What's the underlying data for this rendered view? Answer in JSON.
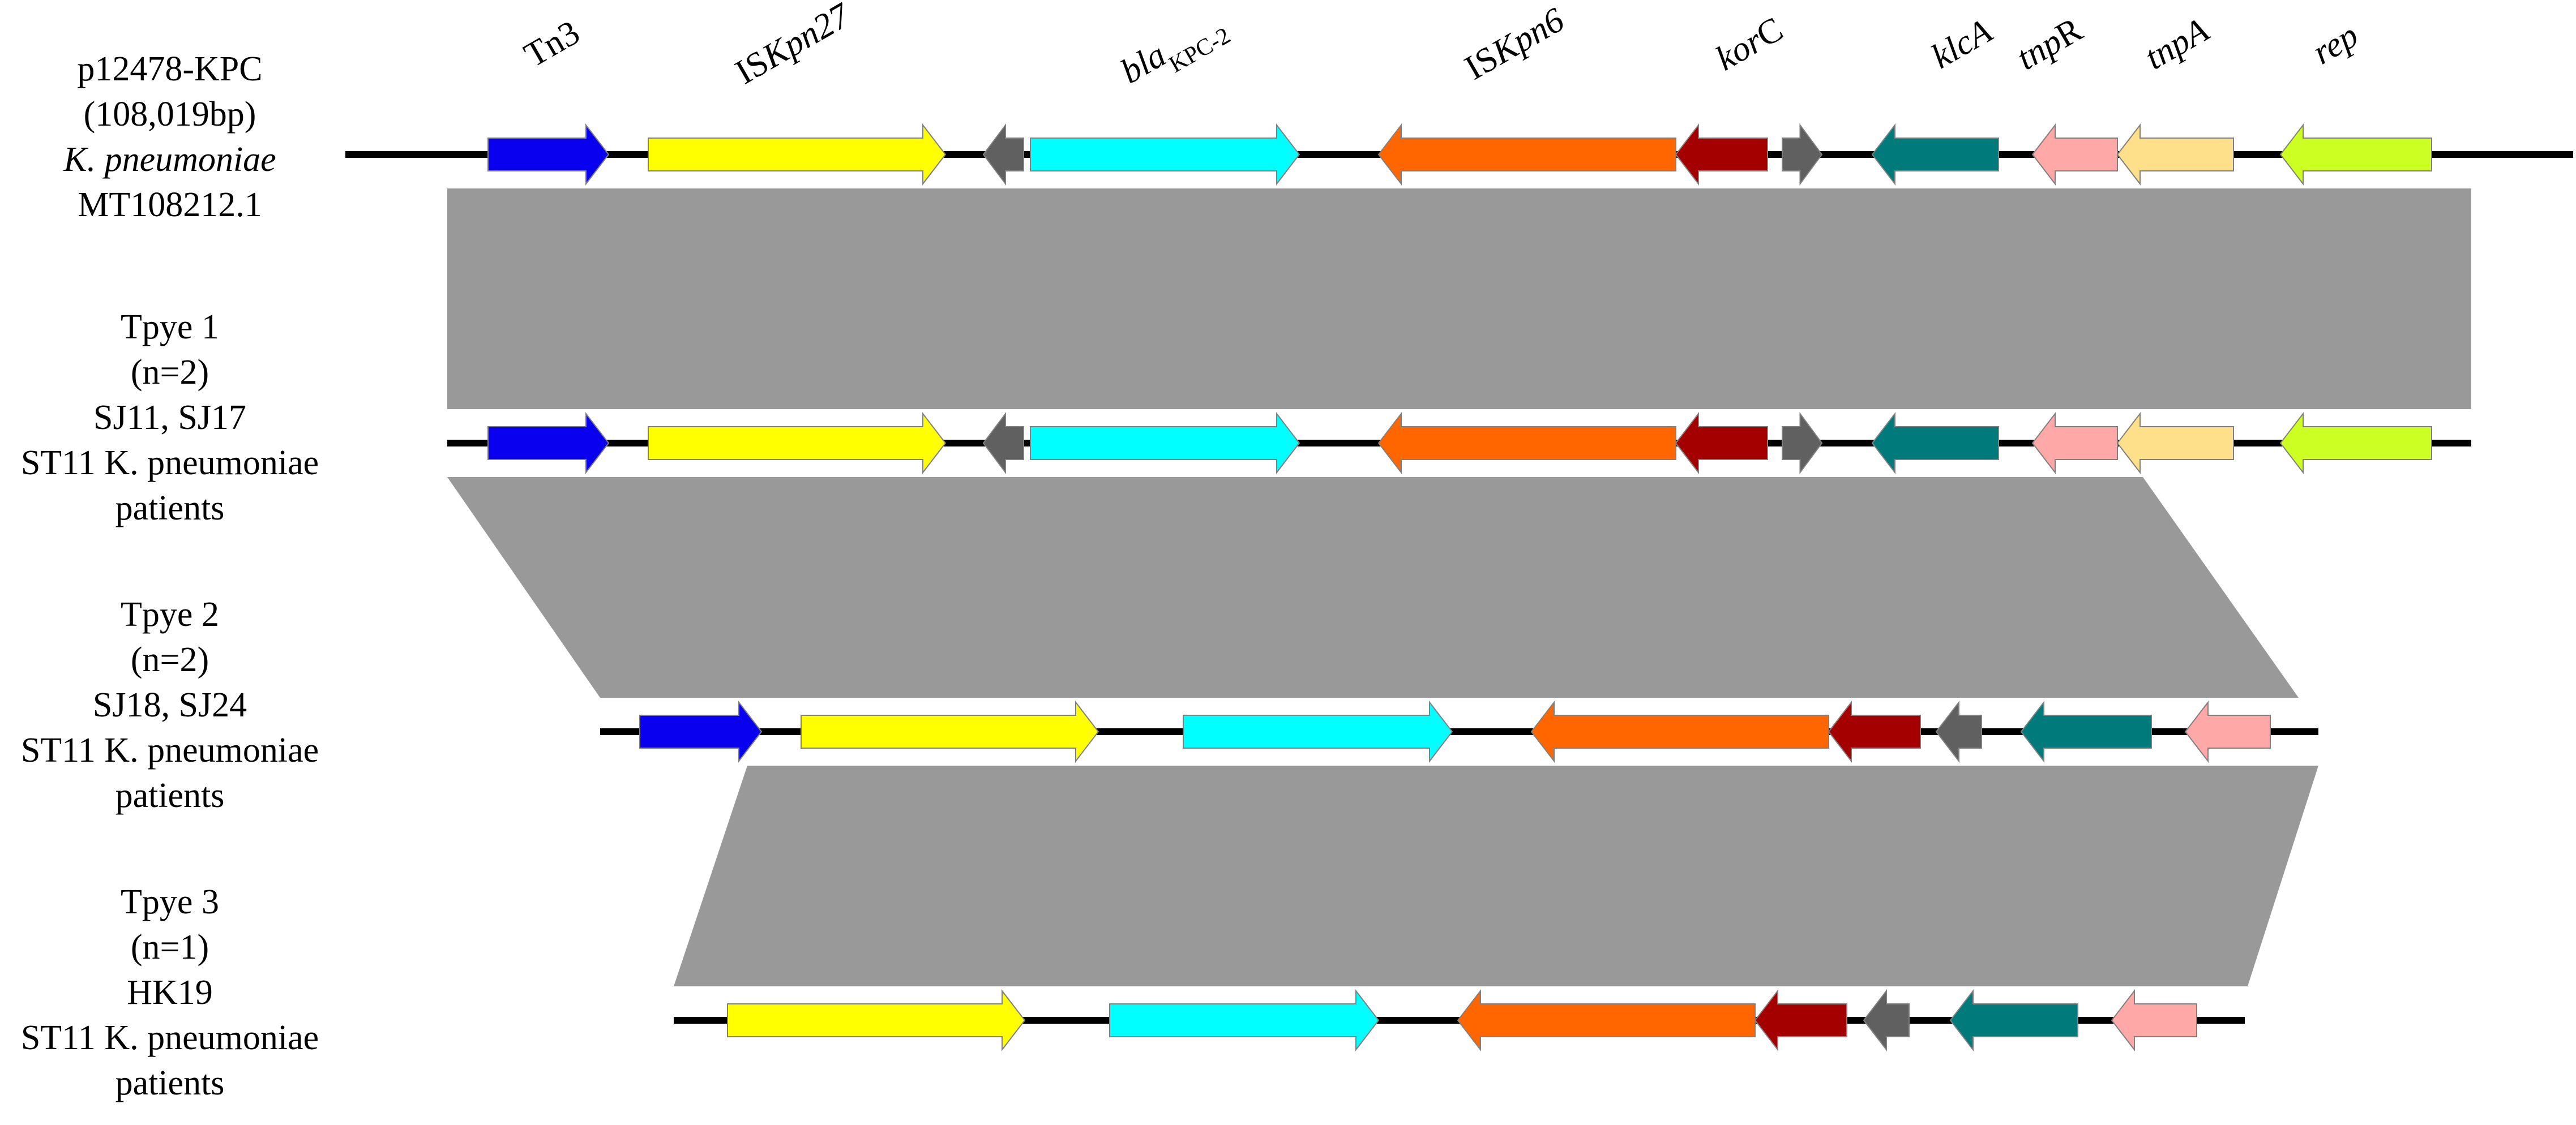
{
  "rows": [
    {
      "id": "ref",
      "label_lines": [
        {
          "text": "p12478-KPC",
          "italic": false
        },
        {
          "text": "(108,019bp)",
          "italic": false
        },
        {
          "text": "K. pneumoniae",
          "italic": true
        },
        {
          "text": "MT108212.1",
          "italic": false
        }
      ],
      "genes": [
        {
          "gene": "Tn3",
          "dir": "+",
          "color": "#0a00f0"
        },
        {
          "gene": "ISKpn27",
          "dir": "+",
          "color": "#ffff00"
        },
        {
          "gene": "small-grey",
          "dir": "-",
          "color": "#606060"
        },
        {
          "gene": "blaKPC-2",
          "dir": "+",
          "color": "#00ffff"
        },
        {
          "gene": "ISKpn6",
          "dir": "-",
          "color": "#ff6600"
        },
        {
          "gene": "korC",
          "dir": "-",
          "color": "#a50000"
        },
        {
          "gene": "small-grey",
          "dir": "+",
          "color": "#606060"
        },
        {
          "gene": "klcA",
          "dir": "-",
          "color": "#007a7a"
        },
        {
          "gene": "tnpR",
          "dir": "-",
          "color": "#ffa8a8"
        },
        {
          "gene": "tnpA",
          "dir": "-",
          "color": "#ffe08a"
        },
        {
          "gene": "rep",
          "dir": "-",
          "color": "#ccff22"
        }
      ]
    },
    {
      "id": "type1",
      "label_lines": [
        {
          "text": "Tpye 1",
          "italic": false
        },
        {
          "text": "(n=2)",
          "italic": false
        },
        {
          "text": "SJ11, SJ17",
          "italic": false
        },
        {
          "text": "ST11 K. pneumoniae",
          "italic": false
        },
        {
          "text": "patients",
          "italic": false
        }
      ],
      "genes": [
        {
          "gene": "Tn3",
          "dir": "+",
          "color": "#0a00f0"
        },
        {
          "gene": "ISKpn27",
          "dir": "+",
          "color": "#ffff00"
        },
        {
          "gene": "small-grey",
          "dir": "-",
          "color": "#606060"
        },
        {
          "gene": "blaKPC-2",
          "dir": "+",
          "color": "#00ffff"
        },
        {
          "gene": "ISKpn6",
          "dir": "-",
          "color": "#ff6600"
        },
        {
          "gene": "korC",
          "dir": "-",
          "color": "#a50000"
        },
        {
          "gene": "small-grey",
          "dir": "+",
          "color": "#606060"
        },
        {
          "gene": "klcA",
          "dir": "-",
          "color": "#007a7a"
        },
        {
          "gene": "tnpR",
          "dir": "-",
          "color": "#ffa8a8"
        },
        {
          "gene": "tnpA",
          "dir": "-",
          "color": "#ffe08a"
        },
        {
          "gene": "rep",
          "dir": "-",
          "color": "#ccff22"
        }
      ]
    },
    {
      "id": "type2",
      "label_lines": [
        {
          "text": "Tpye 2",
          "italic": false
        },
        {
          "text": "(n=2)",
          "italic": false
        },
        {
          "text": "SJ18, SJ24",
          "italic": false
        },
        {
          "text": "ST11 K. pneumoniae",
          "italic": false
        },
        {
          "text": "patients",
          "italic": false
        }
      ],
      "genes": [
        {
          "gene": "Tn3",
          "dir": "+",
          "color": "#0a00f0"
        },
        {
          "gene": "ISKpn27",
          "dir": "+",
          "color": "#ffff00"
        },
        {
          "gene": "blaKPC-2",
          "dir": "+",
          "color": "#00ffff"
        },
        {
          "gene": "ISKpn6",
          "dir": "-",
          "color": "#ff6600"
        },
        {
          "gene": "korC",
          "dir": "-",
          "color": "#a50000"
        },
        {
          "gene": "small-grey",
          "dir": "-",
          "color": "#606060"
        },
        {
          "gene": "klcA",
          "dir": "-",
          "color": "#007a7a"
        },
        {
          "gene": "tnpR",
          "dir": "-",
          "color": "#ffa8a8"
        }
      ]
    },
    {
      "id": "type3",
      "label_lines": [
        {
          "text": "Tpye 3",
          "italic": false
        },
        {
          "text": "(n=1)",
          "italic": false
        },
        {
          "text": "HK19",
          "italic": false
        },
        {
          "text": "ST11 K. pneumoniae",
          "italic": false
        },
        {
          "text": "patients",
          "italic": false
        }
      ],
      "genes": [
        {
          "gene": "ISKpn27",
          "dir": "+",
          "color": "#ffff00"
        },
        {
          "gene": "blaKPC-2",
          "dir": "+",
          "color": "#00ffff"
        },
        {
          "gene": "ISKpn6",
          "dir": "-",
          "color": "#ff6600"
        },
        {
          "gene": "korC",
          "dir": "-",
          "color": "#a50000"
        },
        {
          "gene": "small-grey",
          "dir": "-",
          "color": "#606060"
        },
        {
          "gene": "klcA",
          "dir": "-",
          "color": "#007a7a"
        },
        {
          "gene": "tnpR",
          "dir": "-",
          "color": "#ffa8a8"
        }
      ]
    }
  ],
  "gene_labels": [
    {
      "id": "tn3",
      "parts": [
        {
          "t": "Tn3",
          "i": false
        }
      ]
    },
    {
      "id": "iskpn27",
      "parts": [
        {
          "t": "IS",
          "i": false
        },
        {
          "t": "Kpn27",
          "i": true
        }
      ]
    },
    {
      "id": "blakpc2",
      "parts": [
        {
          "t": "bla",
          "i": true
        },
        {
          "t": "KPC-2",
          "i": false,
          "sub": true
        }
      ]
    },
    {
      "id": "iskpn6",
      "parts": [
        {
          "t": "IS",
          "i": false
        },
        {
          "t": "Kpn6",
          "i": true
        }
      ]
    },
    {
      "id": "korc",
      "parts": [
        {
          "t": "kor",
          "i": true
        },
        {
          "t": "C",
          "i": false
        }
      ]
    },
    {
      "id": "klca",
      "parts": [
        {
          "t": "klcA",
          "i": true
        }
      ]
    },
    {
      "id": "tnpr",
      "parts": [
        {
          "t": "tnp",
          "i": true
        },
        {
          "t": "R",
          "i": false
        }
      ]
    },
    {
      "id": "tnpa",
      "parts": [
        {
          "t": "tnpA",
          "i": true
        }
      ]
    },
    {
      "id": "rep",
      "parts": [
        {
          "t": "rep",
          "i": true
        }
      ]
    }
  ],
  "colors": {
    "homology": "#999999",
    "backbone": "#000000",
    "arrow_outline": "#808080"
  }
}
